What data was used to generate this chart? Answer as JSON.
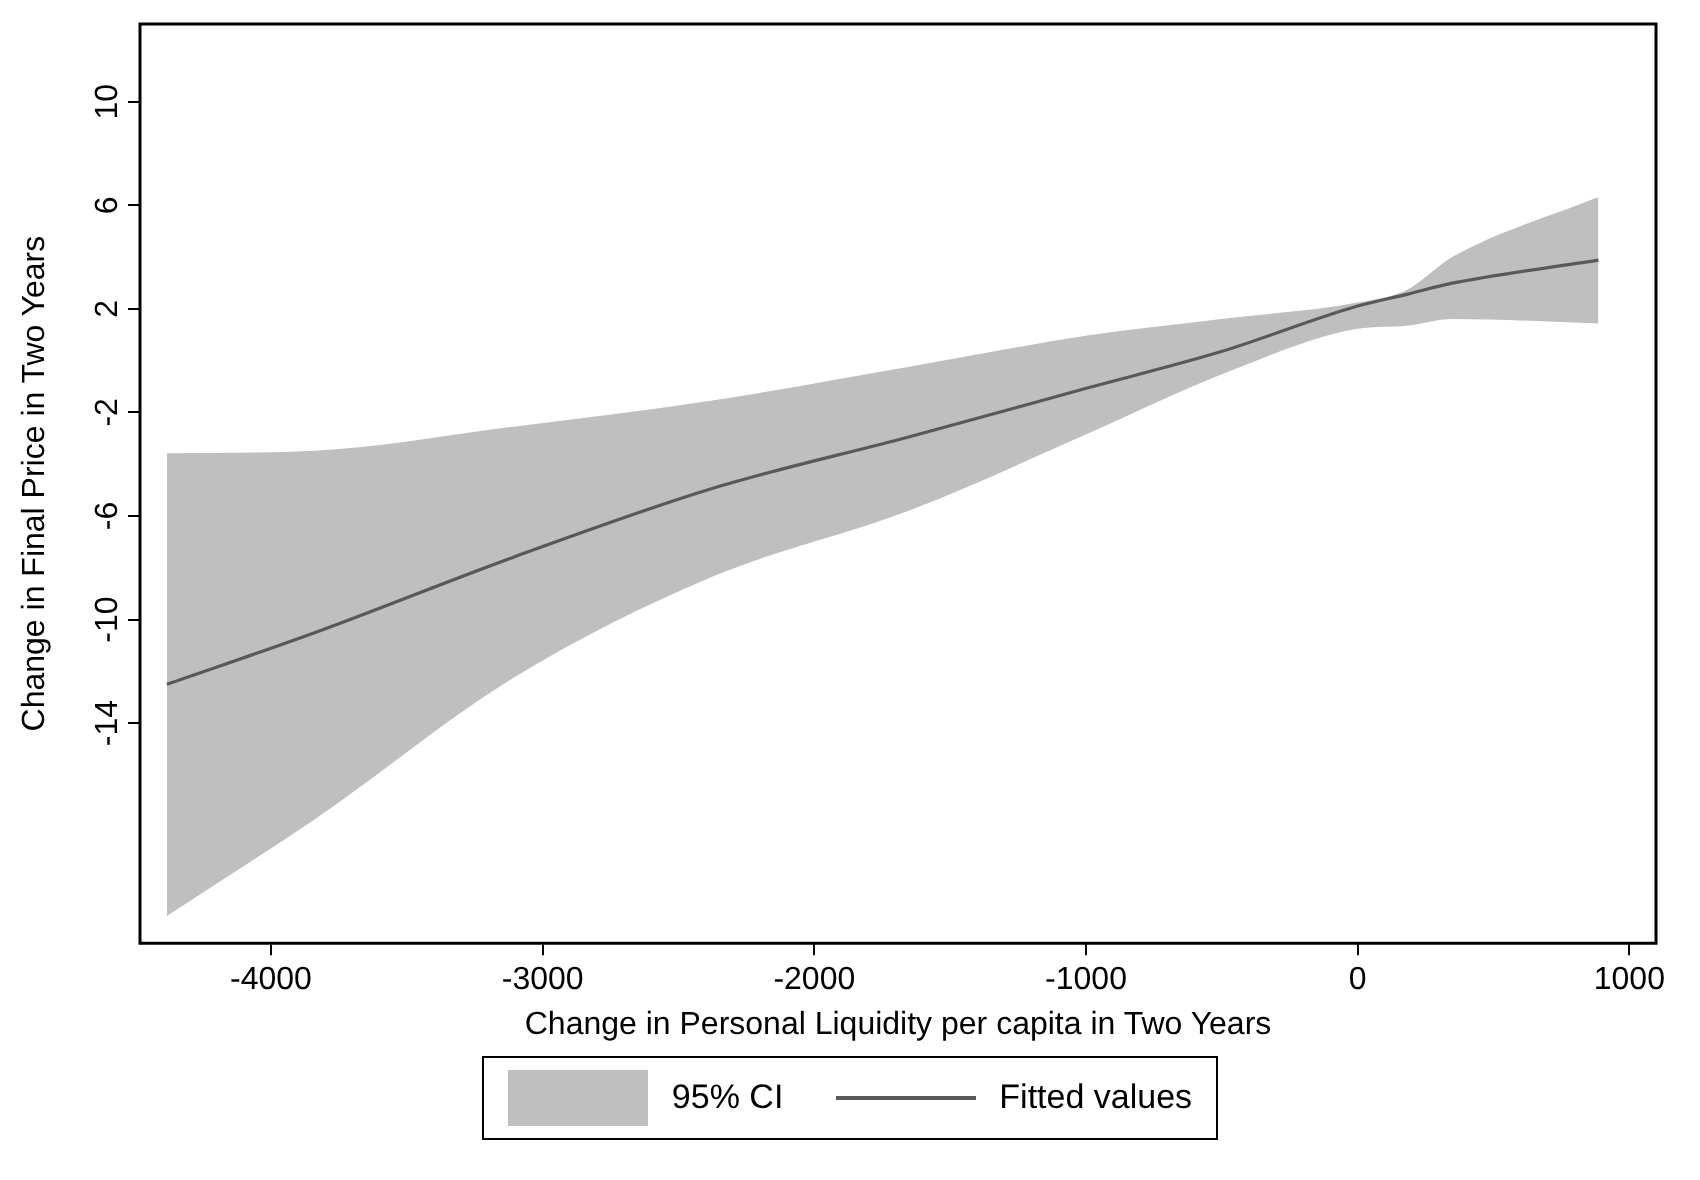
{
  "chart_data": {
    "type": "line",
    "xlabel": "Change in Personal Liquidity per capita in Two Years",
    "ylabel": "Change in Final Price in Two Years",
    "xlim": [
      -4482,
      1098
    ],
    "xticks": [
      -4000,
      -3000,
      -2000,
      -1000,
      0,
      1000
    ],
    "ylim": [
      -22.5,
      13
    ],
    "yticks": [
      -14,
      -10,
      -6,
      -2,
      2,
      6,
      10
    ],
    "grid": false,
    "legend": "bottom",
    "marker": "none",
    "line_style": "solid",
    "annotations": [
      "95% CI"
    ],
    "series": [
      {
        "name": "Fitted values",
        "color": "#595959",
        "x": [
          -4383,
          -3837,
          -3107,
          -2376,
          -1646,
          -989,
          -502,
          0,
          182,
          348,
          886
        ],
        "values": [
          -12.5,
          -10.5,
          -7.59,
          -4.94,
          -2.93,
          -1.04,
          0.35,
          2.11,
          2.56,
          2.99,
          3.88
        ],
        "lower": [
          -21.45,
          -17.7,
          -12.25,
          -8.35,
          -5.77,
          -2.8,
          -0.54,
          1.23,
          1.35,
          1.61,
          1.43
        ],
        "upper": [
          -3.58,
          -3.48,
          -2.55,
          -1.54,
          -0.23,
          0.98,
          1.61,
          2.24,
          2.74,
          4.0,
          6.32
        ]
      }
    ]
  }
}
